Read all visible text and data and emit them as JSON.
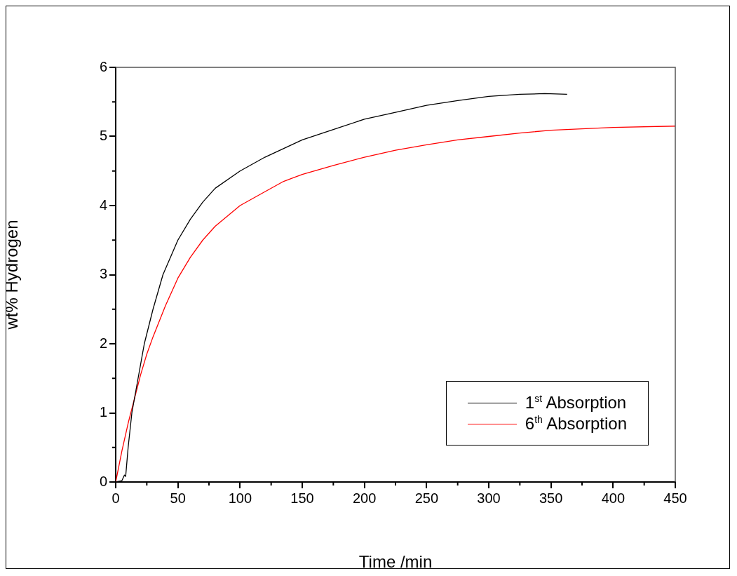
{
  "chart_data": {
    "type": "line",
    "xlabel": "Time /min",
    "ylabel": "wt% Hydrogen",
    "xlim": [
      0,
      450
    ],
    "xticks": [
      0,
      50,
      100,
      150,
      200,
      250,
      300,
      350,
      400,
      450
    ],
    "ylim": [
      0,
      6
    ],
    "yticks": [
      0,
      1,
      2,
      3,
      4,
      5,
      6
    ],
    "grid": false,
    "legend": "bottom right",
    "marker": "none",
    "line_style": "solid",
    "series": [
      {
        "name": "1$^{st}$ Absorption",
        "color": "#000000",
        "x": [
          0,
          5,
          7,
          8,
          10,
          13,
          18,
          23,
          30,
          38,
          50,
          60,
          70,
          80,
          100,
          120,
          150,
          175,
          200,
          225,
          250,
          275,
          300,
          325,
          345,
          363
        ],
        "values": [
          0,
          0.02,
          0.1,
          0.08,
          0.5,
          1.0,
          1.5,
          2.0,
          2.5,
          3.0,
          3.5,
          3.8,
          4.05,
          4.25,
          4.5,
          4.7,
          4.95,
          5.1,
          5.25,
          5.35,
          5.45,
          5.52,
          5.58,
          5.61,
          5.62,
          5.61
        ]
      },
      {
        "name": "6$^{th}$ Absorption",
        "color": "#ff0000",
        "x": [
          0,
          5,
          10,
          15,
          20,
          25,
          30,
          40,
          50,
          60,
          70,
          80,
          100,
          120,
          135,
          150,
          175,
          200,
          225,
          250,
          275,
          300,
          325,
          350,
          400,
          450
        ],
        "values": [
          0,
          0.45,
          0.85,
          1.2,
          1.55,
          1.85,
          2.1,
          2.55,
          2.95,
          3.25,
          3.5,
          3.7,
          4.0,
          4.2,
          4.35,
          4.45,
          4.58,
          4.7,
          4.8,
          4.88,
          4.95,
          5.0,
          5.05,
          5.09,
          5.13,
          5.15
        ]
      }
    ]
  }
}
